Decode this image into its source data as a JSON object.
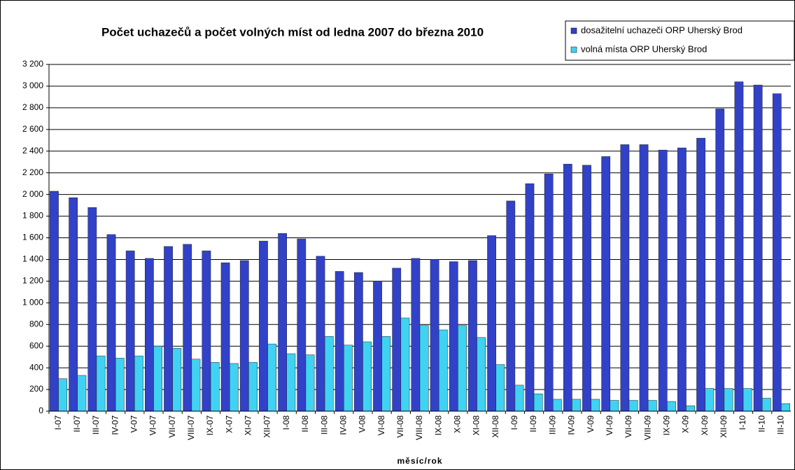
{
  "chart_data": {
    "type": "bar",
    "title": "Počet uchazečů a počet volných míst od ledna 2007 do března 2010",
    "x_label": "měsíc/rok",
    "categories": [
      "I-07",
      "II-07",
      "III-07",
      "IV-07",
      "V-07",
      "VI-07",
      "VII-07",
      "VIII-07",
      "IX-07",
      "X-07",
      "XI-07",
      "XII-07",
      "I-08",
      "II-08",
      "III-08",
      "IV-08",
      "V-08",
      "VI-08",
      "VII-08",
      "VIII-08",
      "IX-08",
      "X-08",
      "XI-08",
      "XII-08",
      "I-09",
      "II-09",
      "III-09",
      "IV-09",
      "V-09",
      "VI-09",
      "VII-09",
      "VIII-09",
      "IX-09",
      "X-09",
      "XI-09",
      "XII-09",
      "I-10",
      "II-10",
      "III-10"
    ],
    "series": [
      {
        "name": "dosažitelní uchazeči ORP Uherský Brod",
        "color": "#3142c8",
        "values": [
          2030,
          1970,
          1880,
          1630,
          1480,
          1410,
          1520,
          1540,
          1480,
          1370,
          1390,
          1570,
          1640,
          1590,
          1430,
          1290,
          1280,
          1200,
          1320,
          1410,
          1400,
          1380,
          1390,
          1620,
          1940,
          2100,
          2190,
          2280,
          2270,
          2350,
          2460,
          2460,
          2410,
          2430,
          2520,
          2790,
          3040,
          3010,
          2930
        ]
      },
      {
        "name": "volná místa ORP Uherský Brod",
        "color": "#40d2f2",
        "values": [
          300,
          330,
          510,
          490,
          510,
          600,
          580,
          480,
          450,
          440,
          450,
          620,
          530,
          520,
          690,
          610,
          640,
          690,
          860,
          790,
          750,
          790,
          680,
          430,
          240,
          160,
          110,
          110,
          110,
          100,
          100,
          100,
          90,
          50,
          210,
          210,
          210,
          120,
          70
        ]
      }
    ],
    "ylim": [
      0,
      3200
    ],
    "yticks": [
      0,
      200,
      400,
      600,
      800,
      {
        "value": 1000,
        "label": "1 000"
      },
      {
        "value": 1200,
        "label": "1 200"
      },
      {
        "value": 1400,
        "label": "1 400"
      },
      {
        "value": 1600,
        "label": "1 600"
      },
      {
        "value": 1800,
        "label": "1 800"
      },
      {
        "value": 2000,
        "label": "2 000"
      },
      {
        "value": 2200,
        "label": "2 200"
      },
      {
        "value": 2400,
        "label": "2 400"
      },
      {
        "value": 2600,
        "label": "2 600"
      },
      {
        "value": 2800,
        "label": "2 800"
      },
      {
        "value": 3000,
        "label": "3 000"
      },
      {
        "value": 3200,
        "label": "3 200"
      }
    ],
    "grid": true,
    "legend": "top-right"
  }
}
